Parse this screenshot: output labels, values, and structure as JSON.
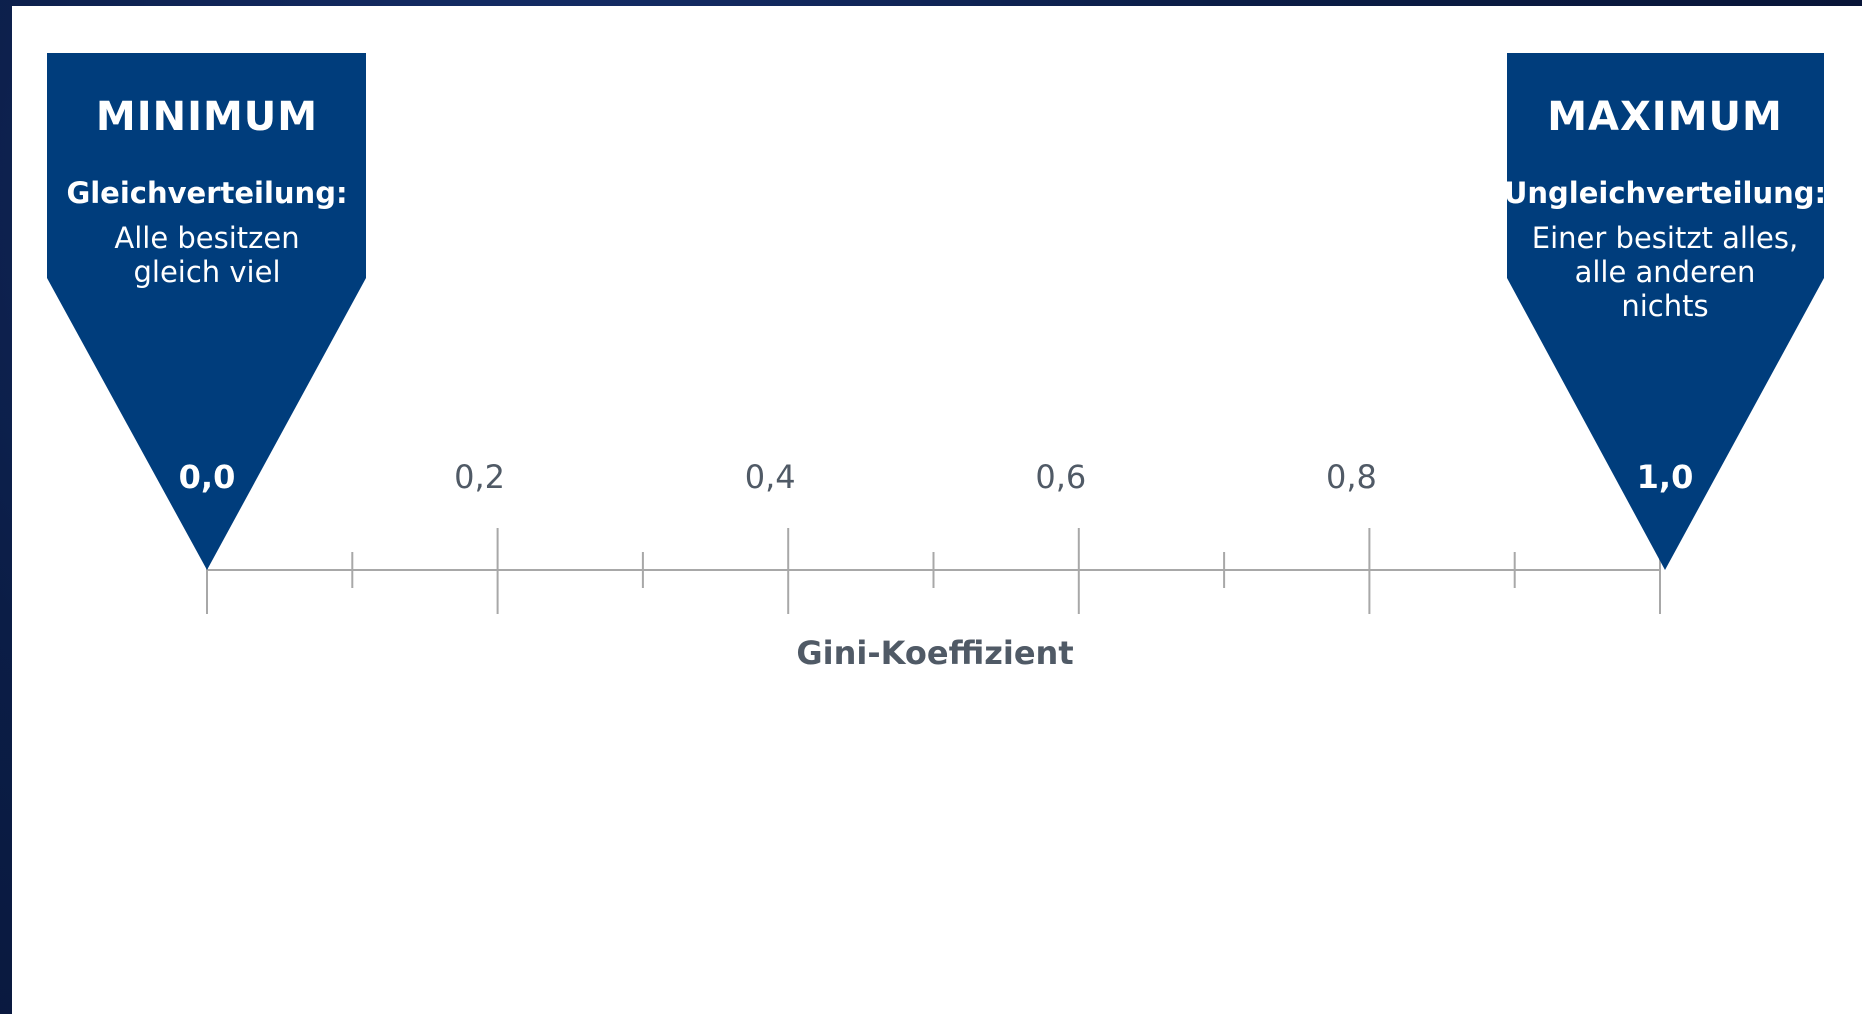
{
  "colors": {
    "pin": "#003d7c",
    "axis": "#a8a8a8",
    "label": "#505a66",
    "background": "#ffffff"
  },
  "scale": {
    "min": 0.0,
    "max": 1.0,
    "major_step": 0.2,
    "minor_step": 0.1,
    "tick_labels": [
      "0,2",
      "0,4",
      "0,6",
      "0,8"
    ],
    "axis_title": "Gini-Koeffizient"
  },
  "pins": {
    "minimum": {
      "title": "MINIMUM",
      "subtitle": "Gleichverteilung:",
      "description": [
        "Alle besitzen",
        "gleich viel"
      ],
      "value": "0,0",
      "at": 0.0
    },
    "maximum": {
      "title": "MAXIMUM",
      "subtitle": "Ungleichverteilung:",
      "description": [
        "Einer besitzt alles,",
        "alle anderen",
        "nichts"
      ],
      "value": "1,0",
      "at": 1.0
    }
  }
}
